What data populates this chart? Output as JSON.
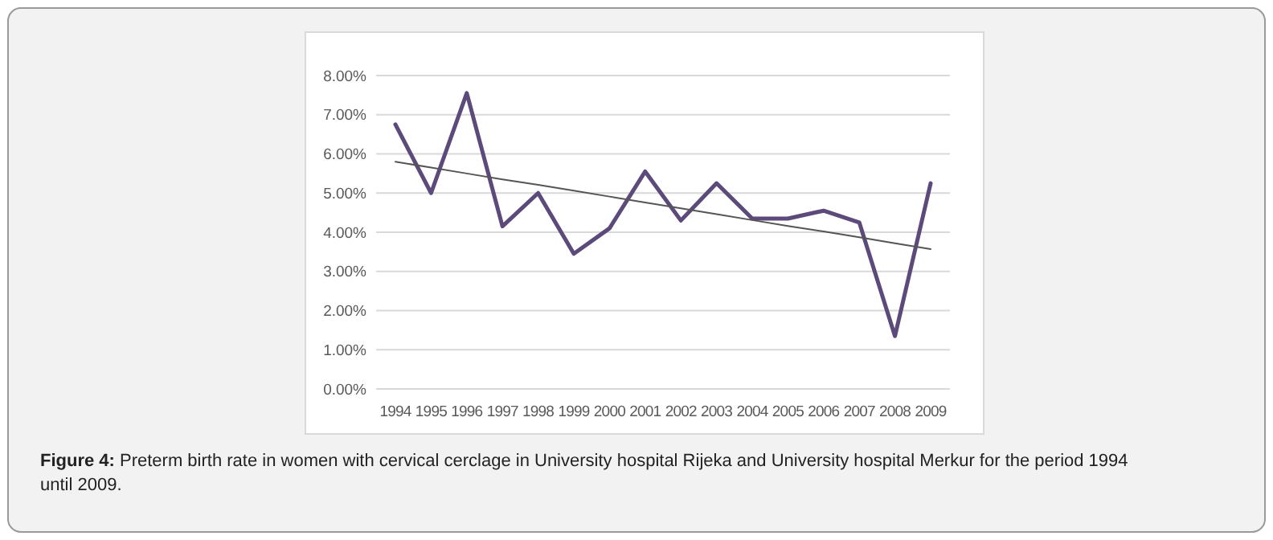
{
  "chart_data": {
    "type": "line",
    "categories": [
      "1994",
      "1995",
      "1996",
      "1997",
      "1998",
      "1999",
      "2000",
      "2001",
      "2002",
      "2003",
      "2004",
      "2005",
      "2006",
      "2007",
      "2008",
      "2009"
    ],
    "series": [
      {
        "color": "#5b4a7a",
        "values": [
          6.75,
          5.0,
          7.55,
          4.15,
          5.0,
          3.45,
          4.1,
          5.55,
          4.3,
          5.25,
          4.35,
          4.35,
          4.55,
          4.25,
          1.35,
          5.25
        ]
      },
      {
        "type": "line",
        "color": "#555555",
        "values": [
          5.8,
          5.65,
          5.5,
          5.35,
          5.21,
          5.06,
          4.91,
          4.76,
          4.61,
          4.46,
          4.31,
          4.16,
          4.02,
          3.87,
          3.72,
          3.57
        ]
      }
    ],
    "ylim": [
      0,
      8
    ],
    "yticks": [
      {
        "value": 0,
        "label": "0.00%"
      },
      {
        "value": 1,
        "label": "1.00%"
      },
      {
        "value": 2,
        "label": "2.00%"
      },
      {
        "value": 3,
        "label": "3.00%"
      },
      {
        "value": 4,
        "label": "4.00%"
      },
      {
        "value": 5,
        "label": "5.00%"
      },
      {
        "value": 6,
        "label": "6.00%"
      },
      {
        "value": 7,
        "label": "7.00%"
      },
      {
        "value": 8,
        "label": "8.00%"
      }
    ],
    "grid": "y",
    "marker": "none",
    "annotations": [
      "Figure 4: Preterm birth rate in women with cervical cerclage in University hospital Rijeka and University hospital Merkur for the period 1994 until 2009."
    ]
  }
}
